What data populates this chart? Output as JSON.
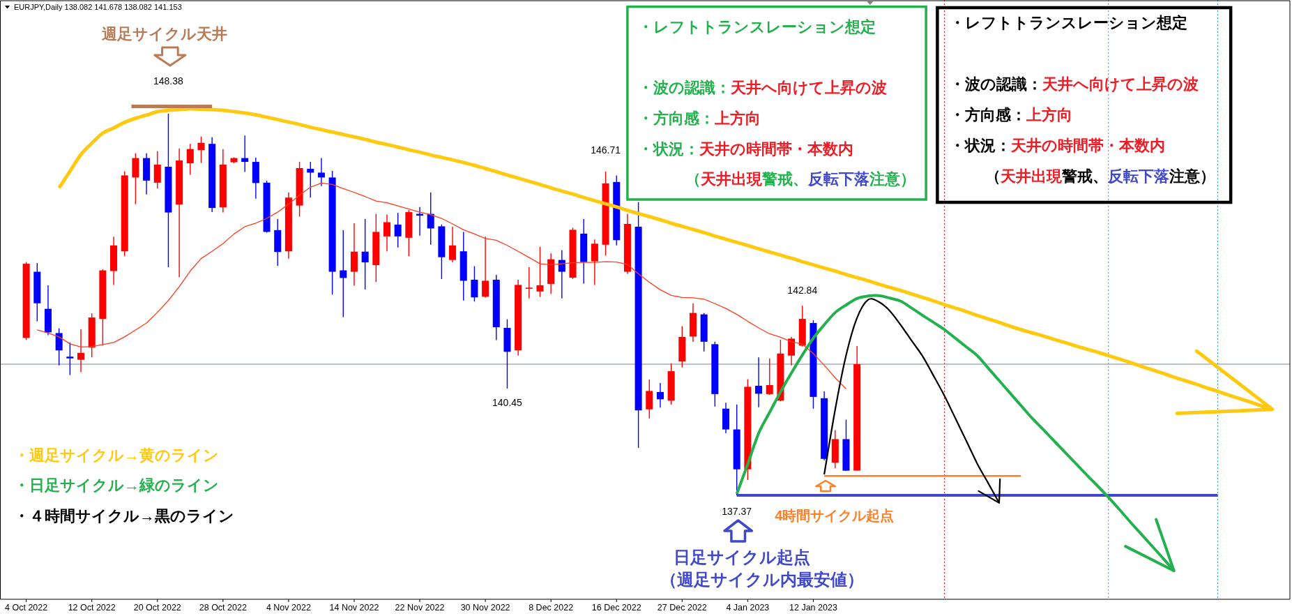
{
  "chart_data": {
    "type": "candlestick",
    "title": "EURJPY,Daily 138.082 141.678 138.082 141.153",
    "categories": [
      "4 Oct 2022",
      null,
      null,
      null,
      null,
      null,
      "12 Oct 2022",
      null,
      null,
      null,
      null,
      null,
      "20 Oct 2022",
      null,
      null,
      null,
      null,
      null,
      "28 Oct 2022",
      null,
      null,
      null,
      null,
      null,
      "4 Nov 2022",
      null,
      null,
      null,
      null,
      null,
      "14 Nov 2022",
      null,
      null,
      null,
      null,
      null,
      "22 Nov 2022",
      null,
      null,
      null,
      null,
      null,
      "30 Nov 2022",
      null,
      null,
      null,
      null,
      null,
      "8 Dec 2022",
      null,
      null,
      null,
      null,
      null,
      "16 Dec 2022",
      null,
      null,
      null,
      null,
      null,
      "27 Dec 2022",
      null,
      null,
      null,
      null,
      null,
      "4 Jan 2023",
      null,
      null,
      null,
      null,
      null,
      "12 Jan 2023",
      null,
      null,
      null,
      null,
      null,
      null,
      null,
      null,
      null,
      null,
      null,
      null,
      null,
      null,
      null,
      null,
      null,
      null,
      null,
      null,
      null,
      null,
      null,
      null,
      null,
      null,
      null,
      null,
      null,
      null,
      null,
      null,
      null,
      null,
      null,
      null,
      null,
      null,
      null,
      null,
      null,
      null,
      null
    ],
    "ohlc": [
      [
        141.91,
        144.1,
        141.85,
        144.05
      ],
      [
        143.82,
        144.07,
        142.39,
        142.91
      ],
      [
        142.75,
        143.43,
        141.99,
        142.07
      ],
      [
        142.05,
        142.19,
        141.12,
        141.55
      ],
      [
        141.37,
        141.78,
        140.84,
        141.32
      ],
      [
        141.28,
        142.16,
        140.92,
        141.48
      ],
      [
        141.63,
        142.62,
        141.35,
        142.5
      ],
      [
        142.46,
        143.89,
        141.69,
        143.86
      ],
      [
        143.84,
        144.83,
        143.44,
        144.58
      ],
      [
        144.41,
        146.72,
        144.27,
        146.6
      ],
      [
        146.54,
        147.24,
        145.77,
        147.1
      ],
      [
        147.1,
        147.24,
        146.05,
        146.45
      ],
      [
        146.39,
        147.3,
        146.22,
        146.91
      ],
      [
        146.85,
        148.38,
        143.95,
        145.53
      ],
      [
        145.76,
        147.38,
        143.66,
        147.03
      ],
      [
        146.95,
        147.51,
        146.62,
        147.36
      ],
      [
        147.33,
        147.72,
        146.96,
        147.54
      ],
      [
        147.51,
        147.7,
        145.54,
        145.66
      ],
      [
        145.68,
        147.36,
        145.53,
        146.91
      ],
      [
        146.98,
        147.12,
        146.95,
        147.1
      ],
      [
        147.1,
        147.75,
        146.7,
        146.99
      ],
      [
        146.99,
        147.11,
        145.93,
        146.38
      ],
      [
        146.39,
        146.45,
        144.95,
        144.97
      ],
      [
        145.02,
        145.34,
        143.99,
        144.39
      ],
      [
        144.41,
        146.11,
        144.2,
        145.96
      ],
      [
        145.73,
        146.99,
        145.41,
        146.81
      ],
      [
        146.79,
        146.99,
        145.96,
        146.68
      ],
      [
        146.68,
        147.1,
        146.29,
        146.54
      ],
      [
        146.54,
        146.73,
        143.16,
        143.82
      ],
      [
        143.86,
        145.02,
        142.51,
        143.64
      ],
      [
        143.82,
        145.22,
        143.42,
        144.4
      ],
      [
        144.4,
        145.34,
        143.31,
        144.09
      ],
      [
        144.01,
        145.49,
        143.52,
        144.97
      ],
      [
        144.84,
        145.47,
        144.41,
        145.25
      ],
      [
        145.18,
        145.52,
        144.52,
        144.84
      ],
      [
        144.8,
        145.6,
        144.27,
        145.54
      ],
      [
        145.49,
        145.69,
        144.86,
        145.44
      ],
      [
        145.49,
        146.11,
        144.6,
        145.07
      ],
      [
        145.13,
        145.18,
        143.61,
        144.24
      ],
      [
        144.16,
        145.12,
        144.09,
        144.58
      ],
      [
        144.41,
        144.97,
        142.99,
        143.56
      ],
      [
        143.59,
        143.98,
        142.96,
        143.08
      ],
      [
        143.1,
        144.83,
        143.07,
        143.56
      ],
      [
        143.59,
        143.73,
        141.85,
        142.22
      ],
      [
        142.2,
        142.45,
        140.45,
        141.51
      ],
      [
        141.55,
        143.59,
        141.4,
        143.44
      ],
      [
        143.34,
        143.95,
        143.05,
        143.36
      ],
      [
        143.25,
        144.54,
        143.1,
        143.43
      ],
      [
        143.47,
        144.35,
        143.18,
        144.18
      ],
      [
        144.16,
        144.44,
        143.05,
        143.82
      ],
      [
        143.65,
        145.09,
        143.61,
        145.03
      ],
      [
        144.92,
        145.34,
        143.48,
        144.1
      ],
      [
        144.12,
        144.75,
        143.44,
        144.63
      ],
      [
        144.6,
        146.71,
        144.29,
        146.37
      ],
      [
        146.41,
        146.6,
        144.58,
        144.73
      ],
      [
        143.82,
        145.49,
        143.76,
        145.2
      ],
      [
        145.12,
        145.83,
        138.74,
        139.82
      ],
      [
        139.85,
        140.71,
        139.59,
        140.38
      ],
      [
        140.35,
        140.61,
        139.9,
        140.14
      ],
      [
        140.1,
        141.18,
        139.99,
        140.95
      ],
      [
        141.23,
        142.25,
        141.06,
        141.94
      ],
      [
        141.95,
        142.91,
        141.8,
        142.63
      ],
      [
        142.59,
        142.63,
        141.52,
        141.8
      ],
      [
        141.73,
        141.8,
        139.93,
        140.29
      ],
      [
        139.87,
        140.04,
        139.16,
        139.27
      ],
      [
        139.27,
        139.99,
        137.37,
        138.12
      ],
      [
        138.12,
        140.72,
        137.81,
        140.5
      ],
      [
        140.53,
        141.35,
        139.91,
        140.3
      ],
      [
        140.29,
        141.32,
        140.27,
        140.55
      ],
      [
        140.1,
        141.86,
        140.08,
        141.46
      ],
      [
        141.4,
        141.94,
        141.12,
        141.89
      ],
      [
        141.69,
        142.84,
        141.66,
        142.46
      ],
      [
        142.34,
        142.42,
        139.87,
        140.21
      ],
      [
        140.17,
        140.37,
        138.38,
        138.42
      ],
      [
        138.31,
        139.25,
        138.15,
        138.99
      ],
      [
        138.99,
        139.55,
        138.08,
        138.08
      ],
      [
        138.082,
        141.678,
        138.082,
        141.153
      ],
      null,
      null,
      null,
      null,
      null,
      null,
      null,
      null,
      null,
      null,
      null,
      null,
      null,
      null,
      null,
      null,
      null,
      null,
      null,
      null,
      null,
      null,
      null,
      null,
      null,
      null,
      null,
      null,
      null,
      null,
      null,
      null,
      null,
      null,
      null,
      null,
      null,
      null,
      null
    ],
    "colors": [
      "#ff0000",
      "#0000ff",
      "#0000ff",
      "#0000ff",
      "#0000ff",
      "#ff0000",
      "#ff0000",
      "#ff0000",
      "#ff0000",
      "#ff0000",
      "#ff0000",
      "#0000ff",
      "#ff0000",
      "#0000ff",
      "#ff0000",
      "#ff0000",
      "#ff0000",
      "#0000ff",
      "#ff0000",
      "#ff0000",
      "#0000ff",
      "#0000ff",
      "#0000ff",
      "#0000ff",
      "#ff0000",
      "#ff0000",
      "#0000ff",
      "#0000ff",
      "#0000ff",
      "#0000ff",
      "#ff0000",
      "#0000ff",
      "#ff0000",
      "#ff0000",
      "#0000ff",
      "#ff0000",
      "#0000ff",
      "#0000ff",
      "#0000ff",
      "#ff0000",
      "#0000ff",
      "#0000ff",
      "#ff0000",
      "#0000ff",
      "#0000ff",
      "#ff0000",
      "#ff0000",
      "#ff0000",
      "#ff0000",
      "#0000ff",
      "#ff0000",
      "#0000ff",
      "#ff0000",
      "#ff0000",
      "#0000ff",
      "#ff0000",
      "#0000ff",
      "#ff0000",
      "#0000ff",
      "#ff0000",
      "#ff0000",
      "#ff0000",
      "#0000ff",
      "#0000ff",
      "#0000ff",
      "#0000ff",
      "#ff0000",
      "#0000ff",
      "#ff0000",
      "#ff0000",
      "#ff0000",
      "#ff0000",
      "#0000ff",
      "#0000ff",
      "#ff0000",
      "#0000ff",
      "#ff0000",
      null,
      null,
      null,
      null,
      null,
      null,
      null,
      null,
      null,
      null,
      null,
      null,
      null,
      null,
      null,
      null,
      null,
      null,
      null,
      null,
      null,
      null,
      null,
      null,
      null,
      null,
      null,
      null,
      null,
      null,
      null,
      null,
      null,
      null,
      null,
      null,
      null,
      null,
      null
    ],
    "series": [
      {
        "type": "line",
        "color": "#ff3c1e",
        "values": [
          null,
          142.14,
          142.05,
          141.94,
          141.74,
          141.65,
          141.66,
          141.72,
          141.78,
          141.94,
          142.14,
          142.34,
          142.65,
          142.99,
          143.39,
          143.84,
          144.2,
          144.41,
          144.63,
          144.91,
          145.12,
          145.22,
          145.36,
          145.54,
          145.77,
          146.03,
          146.26,
          146.38,
          146.34,
          146.22,
          146.11,
          145.99,
          145.86,
          145.81,
          145.72,
          145.63,
          145.54,
          145.47,
          145.36,
          145.2,
          145.03,
          144.91,
          144.78,
          144.73,
          144.58,
          144.41,
          144.23,
          144.05,
          144.02,
          144.05,
          144.08,
          144.09,
          144.09,
          144.11,
          144.1,
          144.03,
          143.76,
          143.52,
          143.3,
          143.14,
          143.08,
          143.07,
          143.03,
          142.9,
          142.76,
          142.59,
          142.39,
          142.2,
          142.03,
          141.93,
          141.8,
          141.73,
          141.46,
          141.12,
          140.76,
          140.44,
          null,
          null,
          null,
          null,
          null,
          null,
          null,
          null,
          null,
          null,
          null,
          null,
          null,
          null,
          null,
          null,
          null,
          null,
          null,
          null,
          null,
          null,
          null,
          null,
          null,
          null,
          null,
          null,
          null,
          null,
          null,
          null,
          null,
          null,
          null,
          null,
          null,
          null,
          null,
          null
        ]
      },
      {
        "type": "line",
        "color": "#ffc90e",
        "values": [
          null,
          null,
          null,
          146.24,
          146.72,
          147.2,
          147.53,
          147.82,
          147.97,
          148.13,
          148.25,
          148.34,
          148.44,
          148.48,
          148.5,
          148.52,
          148.51,
          148.5,
          148.48,
          148.44,
          148.4,
          148.35,
          148.28,
          148.21,
          148.14,
          148.07,
          147.99,
          147.92,
          147.85,
          147.78,
          147.71,
          147.64,
          147.56,
          147.49,
          147.42,
          147.34,
          147.27,
          147.19,
          147.12,
          147.05,
          146.97,
          146.89,
          146.8,
          146.71,
          146.61,
          146.52,
          146.43,
          146.34,
          146.24,
          146.15,
          146.06,
          145.96,
          145.87,
          145.78,
          145.69,
          145.59,
          145.5,
          145.41,
          145.32,
          145.22,
          145.13,
          145.04,
          144.95,
          144.85,
          144.76,
          144.67,
          144.58,
          144.48,
          144.39,
          144.3,
          144.21,
          144.11,
          144.02,
          143.93,
          143.84,
          143.74,
          143.65,
          143.56,
          143.46,
          143.37,
          143.28,
          143.18,
          143.08,
          142.98,
          142.87,
          142.77,
          142.67,
          142.56,
          142.46,
          142.36,
          142.25,
          142.15,
          142.06,
          141.97,
          141.87,
          141.78,
          141.68,
          141.59,
          141.5,
          141.4,
          141.3,
          141.2,
          141.09,
          140.99,
          140.89,
          140.78,
          140.68,
          140.58,
          140.47,
          140.37,
          140.26,
          140.16,
          140.06,
          139.95,
          139.85,
          null
        ]
      },
      {
        "type": "line",
        "color": "#22b14c",
        "values": [
          null,
          null,
          null,
          null,
          null,
          null,
          null,
          null,
          null,
          null,
          null,
          null,
          null,
          null,
          null,
          null,
          null,
          null,
          null,
          null,
          null,
          null,
          null,
          null,
          null,
          null,
          null,
          null,
          null,
          null,
          null,
          null,
          null,
          null,
          null,
          null,
          null,
          null,
          null,
          null,
          null,
          null,
          null,
          null,
          null,
          null,
          null,
          null,
          null,
          null,
          null,
          null,
          null,
          null,
          null,
          null,
          null,
          null,
          null,
          null,
          null,
          null,
          null,
          null,
          null,
          137.41,
          138.27,
          139.16,
          139.76,
          140.35,
          140.9,
          141.42,
          141.9,
          142.29,
          142.64,
          142.86,
          143.05,
          143.12,
          143.13,
          143.06,
          142.97,
          142.77,
          142.56,
          142.36,
          142.15,
          141.9,
          141.65,
          141.4,
          141.04,
          140.68,
          140.32,
          139.96,
          139.6,
          139.28,
          138.95,
          138.62,
          138.29,
          137.96,
          137.64,
          137.31,
          136.96,
          136.6,
          136.25,
          135.9,
          135.55,
          135.19,
          null,
          null,
          null,
          null,
          null,
          null,
          null,
          null,
          null,
          null
        ]
      },
      {
        "type": "line",
        "color": "#000000",
        "values": [
          null,
          null,
          null,
          null,
          null,
          null,
          null,
          null,
          null,
          null,
          null,
          null,
          null,
          null,
          null,
          null,
          null,
          null,
          null,
          null,
          null,
          null,
          null,
          null,
          null,
          null,
          null,
          null,
          null,
          null,
          null,
          null,
          null,
          null,
          null,
          null,
          null,
          null,
          null,
          null,
          null,
          null,
          null,
          null,
          null,
          null,
          null,
          null,
          null,
          null,
          null,
          null,
          null,
          null,
          null,
          null,
          null,
          null,
          null,
          null,
          null,
          null,
          null,
          null,
          null,
          null,
          null,
          null,
          null,
          null,
          null,
          null,
          null,
          137.97,
          139.84,
          141.41,
          142.49,
          143.01,
          142.95,
          142.69,
          142.28,
          141.83,
          141.38,
          140.82,
          140.24,
          139.59,
          138.94,
          138.28,
          137.72,
          137.15,
          null,
          null,
          null,
          null,
          null,
          null,
          null,
          null,
          null,
          null,
          null,
          null,
          null,
          null,
          null,
          null,
          null,
          null,
          null,
          null,
          null,
          null,
          null,
          null,
          null,
          null
        ]
      },
      {
        "type": "line",
        "color": "#3f48cc",
        "values": [
          null,
          null,
          null,
          null,
          null,
          null,
          null,
          null,
          null,
          null,
          null,
          null,
          null,
          null,
          null,
          null,
          null,
          null,
          null,
          null,
          null,
          null,
          null,
          null,
          null,
          null,
          null,
          null,
          null,
          null,
          null,
          null,
          null,
          null,
          null,
          null,
          null,
          null,
          null,
          null,
          null,
          null,
          null,
          null,
          null,
          null,
          null,
          null,
          null,
          null,
          null,
          null,
          null,
          null,
          null,
          null,
          null,
          null,
          null,
          null,
          null,
          null,
          null,
          null,
          null,
          137.37,
          137.37,
          137.37,
          137.37,
          137.37,
          137.37,
          137.37,
          137.37,
          137.37,
          137.37,
          137.37,
          137.37,
          137.37,
          137.37,
          137.37,
          137.37,
          137.37,
          137.37,
          137.37,
          137.37,
          137.37,
          137.37,
          137.37,
          137.37,
          137.37,
          137.37,
          137.37,
          137.37,
          137.37,
          137.37,
          137.37,
          137.37,
          137.37,
          137.37,
          137.37,
          137.37,
          137.37,
          137.37,
          137.37,
          137.37,
          137.37,
          137.37,
          137.37,
          137.37,
          137.37,
          null,
          null,
          null,
          null,
          null,
          null
        ]
      },
      {
        "type": "line",
        "color": "#ff7f27",
        "values": [
          null,
          null,
          null,
          null,
          null,
          null,
          null,
          null,
          null,
          null,
          null,
          null,
          null,
          null,
          null,
          null,
          null,
          null,
          null,
          null,
          null,
          null,
          null,
          null,
          null,
          null,
          null,
          null,
          null,
          null,
          null,
          null,
          null,
          null,
          null,
          null,
          null,
          null,
          null,
          null,
          null,
          null,
          null,
          null,
          null,
          null,
          null,
          null,
          null,
          null,
          null,
          null,
          null,
          null,
          null,
          null,
          null,
          null,
          null,
          null,
          null,
          null,
          null,
          null,
          null,
          null,
          null,
          null,
          null,
          null,
          null,
          null,
          null,
          137.93,
          137.93,
          137.93,
          137.93,
          137.93,
          137.93,
          137.93,
          137.93,
          137.93,
          137.93,
          137.93,
          137.93,
          137.93,
          137.93,
          137.93,
          137.93,
          137.93,
          137.93,
          137.93,
          null,
          null,
          null,
          null,
          null,
          null,
          null,
          null,
          null,
          null,
          null,
          null,
          null,
          null,
          null,
          null,
          null,
          null,
          null,
          null,
          null,
          null,
          null,
          null
        ]
      }
    ],
    "ref_lines": [
      {
        "axis": "y",
        "value": 141.153,
        "color": "#778899"
      }
    ],
    "annotations": [
      "週足サイクル天井",
      {
        "text": "148.38",
        "y": 148.38
      },
      "・レフトトランスレーション想定",
      "・波の認識：天井へ向けて上昇の波",
      "・方向感：上方向",
      "・状況：天井の時間帯・本数内",
      "（天井出現警戒、反転下落注意）",
      "・レフトトランスレーション想定",
      "・波の認識：天井へ向けて上昇の波",
      "・方向感：上方向",
      "・状況：天井の時間帯・本数内",
      "（天井出現警戒、反転下落注意）",
      {
        "text": "146.71",
        "y": 146.71
      },
      {
        "text": "142.84",
        "y": 142.84
      },
      {
        "text": "140.45",
        "y": 140.45
      },
      "・週足サイクル→黄のライン",
      "・日足サイクル→緑のライン",
      "・４時間サイクル→黒のライン",
      {
        "text": "137.37",
        "y": 137.37
      },
      "4時間サイクル起点",
      "日足サイクル起点",
      "（週足サイクル内最安値）"
    ]
  }
}
